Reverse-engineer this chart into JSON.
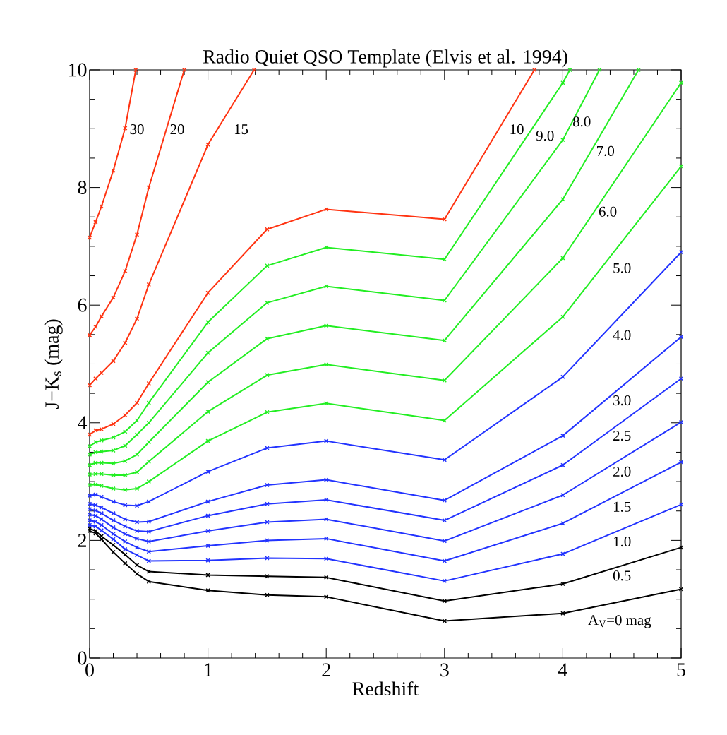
{
  "chart_data": {
    "type": "line",
    "title": "Radio Quiet QSO Template (Elvis et al. 1994)",
    "xlabel": "Redshift",
    "ylabel": "J−K$_{s}$ (mag)",
    "x": [
      0,
      0.05,
      0.1,
      0.2,
      0.3,
      0.4,
      0.5,
      1,
      1.5,
      2,
      3,
      4,
      5
    ],
    "xlim": [
      0,
      5
    ],
    "ylim": [
      0,
      10
    ],
    "xticks": [
      0,
      1,
      2,
      3,
      4,
      5
    ],
    "yticks": [
      0,
      2,
      4,
      6,
      8,
      10
    ],
    "marker": "cross",
    "line_style": "solid",
    "series": [
      {
        "name": "A$_{V}$=0 mag",
        "color": "#000000",
        "values": [
          2.16,
          2.12,
          2.02,
          1.8,
          1.61,
          1.43,
          1.3,
          1.15,
          1.07,
          1.04,
          0.63,
          0.76,
          1.17
        ]
      },
      {
        "name": "0.5",
        "color": "#000000",
        "values": [
          2.2,
          2.16,
          2.07,
          1.92,
          1.76,
          1.58,
          1.47,
          1.41,
          1.39,
          1.37,
          0.97,
          1.26,
          1.88
        ]
      },
      {
        "name": "1.0",
        "color": "#2233ff",
        "values": [
          2.26,
          2.24,
          2.17,
          2.02,
          1.85,
          1.75,
          1.65,
          1.66,
          1.7,
          1.69,
          1.31,
          1.77,
          2.61
        ]
      },
      {
        "name": "1.5",
        "color": "#2233ff",
        "values": [
          2.34,
          2.32,
          2.26,
          2.11,
          1.98,
          1.88,
          1.81,
          1.91,
          2.0,
          2.03,
          1.65,
          2.29,
          3.33
        ]
      },
      {
        "name": "2.0",
        "color": "#2233ff",
        "values": [
          2.44,
          2.42,
          2.36,
          2.22,
          2.11,
          2.03,
          1.98,
          2.16,
          2.31,
          2.36,
          1.99,
          2.77,
          4.01
        ]
      },
      {
        "name": "2.5",
        "color": "#2233ff",
        "values": [
          2.53,
          2.51,
          2.46,
          2.34,
          2.24,
          2.16,
          2.15,
          2.42,
          2.62,
          2.69,
          2.34,
          3.28,
          4.75
        ]
      },
      {
        "name": "3.0",
        "color": "#2233ff",
        "values": [
          2.62,
          2.6,
          2.56,
          2.46,
          2.36,
          2.31,
          2.32,
          2.66,
          2.94,
          3.03,
          2.68,
          3.78,
          5.46
        ]
      },
      {
        "name": "4.0",
        "color": "#2233ff",
        "values": [
          2.76,
          2.78,
          2.74,
          2.66,
          2.6,
          2.59,
          2.66,
          3.17,
          3.57,
          3.69,
          3.37,
          4.78,
          6.9
        ]
      },
      {
        "name": "5.0",
        "color": "#22ee22",
        "values": [
          2.94,
          2.95,
          2.93,
          2.88,
          2.86,
          2.88,
          3.0,
          3.69,
          4.18,
          4.33,
          4.04,
          5.8,
          8.36
        ]
      },
      {
        "name": "6.0",
        "color": "#22ee22",
        "values": [
          3.12,
          3.13,
          3.13,
          3.11,
          3.11,
          3.16,
          3.34,
          4.19,
          4.81,
          4.99,
          4.72,
          6.8,
          9.78
        ]
      },
      {
        "name": "7.0",
        "color": "#22ee22",
        "x": [
          0,
          0.05,
          0.1,
          0.2,
          0.3,
          0.4,
          0.5,
          1,
          1.5,
          2,
          3,
          4,
          4.64
        ],
        "values": [
          3.28,
          3.32,
          3.32,
          3.31,
          3.35,
          3.46,
          3.67,
          4.69,
          5.43,
          5.65,
          5.4,
          7.8,
          10
        ]
      },
      {
        "name": "8.0",
        "color": "#22ee22",
        "x": [
          0,
          0.05,
          0.1,
          0.2,
          0.3,
          0.4,
          0.5,
          1,
          1.5,
          2,
          3,
          4,
          4.31
        ],
        "values": [
          3.46,
          3.5,
          3.51,
          3.53,
          3.61,
          3.8,
          4.0,
          5.19,
          6.04,
          6.32,
          6.08,
          8.81,
          10
        ]
      },
      {
        "name": "9.0",
        "color": "#22ee22",
        "x": [
          0,
          0.05,
          0.1,
          0.2,
          0.3,
          0.4,
          0.5,
          1,
          1.5,
          2,
          3,
          4,
          4.06
        ],
        "values": [
          3.6,
          3.67,
          3.7,
          3.75,
          3.85,
          4.04,
          4.34,
          5.71,
          6.67,
          6.98,
          6.78,
          9.78,
          10
        ]
      },
      {
        "name": "10",
        "color": "#ff3311",
        "x": [
          0,
          0.05,
          0.1,
          0.2,
          0.3,
          0.4,
          0.5,
          1,
          1.5,
          2,
          3,
          3.76
        ],
        "values": [
          3.8,
          3.87,
          3.89,
          3.98,
          4.13,
          4.34,
          4.67,
          6.21,
          7.29,
          7.63,
          7.46,
          10
        ]
      },
      {
        "name": "15",
        "color": "#ff3311",
        "x": [
          0,
          0.05,
          0.1,
          0.2,
          0.3,
          0.4,
          0.5,
          1,
          1.39
        ],
        "values": [
          4.64,
          4.75,
          4.85,
          5.05,
          5.36,
          5.77,
          6.35,
          8.73,
          10
        ]
      },
      {
        "name": "20",
        "color": "#ff3311",
        "x": [
          0,
          0.05,
          0.1,
          0.2,
          0.3,
          0.4,
          0.5,
          0.8
        ],
        "values": [
          5.49,
          5.63,
          5.81,
          6.13,
          6.58,
          7.2,
          8.0,
          10
        ]
      },
      {
        "name": "30",
        "color": "#ff3311",
        "x": [
          0,
          0.05,
          0.1,
          0.2,
          0.3,
          0.39
        ],
        "values": [
          7.15,
          7.41,
          7.68,
          8.29,
          9.01,
          10
        ]
      }
    ]
  }
}
